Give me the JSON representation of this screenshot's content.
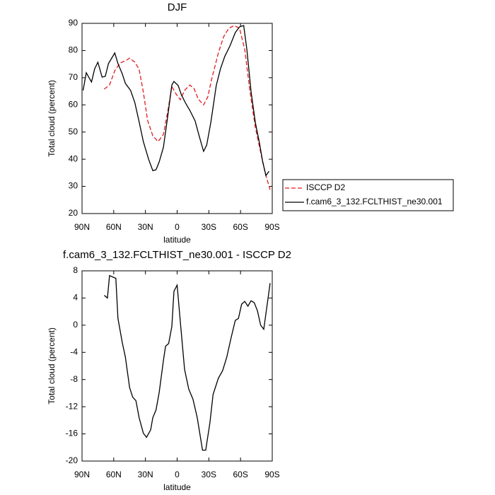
{
  "chart_data": [
    {
      "type": "line",
      "title": "DJF",
      "xlabel": "latitude",
      "ylabel": "Total cloud (percent)",
      "xlim": [
        90,
        -90
      ],
      "xticks": [
        {
          "value": 90,
          "label": "90N"
        },
        {
          "value": 60,
          "label": "60N"
        },
        {
          "value": 30,
          "label": "30N"
        },
        0,
        {
          "value": -30,
          "label": "30S"
        },
        {
          "value": -60,
          "label": "60S"
        },
        {
          "value": -90,
          "label": "90S"
        }
      ],
      "ylim": [
        20,
        90
      ],
      "yticks": [
        20,
        30,
        40,
        50,
        60,
        70,
        80,
        90
      ],
      "legend": "right",
      "series": [
        {
          "name": "ISCCP D2",
          "color": "#e41a1c",
          "linestyle": "dashed",
          "x": [
            69,
            64,
            59,
            54,
            49,
            45,
            40,
            36,
            32,
            28,
            23,
            18,
            13,
            9,
            5,
            1,
            -3,
            -7,
            -12,
            -16,
            -20,
            -25,
            -29,
            -33,
            -39,
            -44,
            -49,
            -54,
            -59,
            -64,
            -69,
            -74,
            -79,
            -84,
            -88
          ],
          "values": [
            65.8,
            67.3,
            72.6,
            75.4,
            76.2,
            77.2,
            75.7,
            73.1,
            64.7,
            54.3,
            48.6,
            46.5,
            49.1,
            57.4,
            66.8,
            64,
            61.9,
            65.3,
            67.3,
            66,
            62.1,
            60,
            62.9,
            70,
            79.1,
            85.1,
            88.2,
            89.2,
            88.2,
            80.4,
            64.7,
            51.7,
            42.6,
            34,
            28.8
          ]
        },
        {
          "name": "f.cam6_3_132.FCLTHIST_ne30.001",
          "color": "#000000",
          "linestyle": "solid",
          "x": [
            89,
            86,
            81,
            78,
            75,
            71,
            68,
            65,
            59,
            56,
            52,
            49,
            44,
            40,
            36,
            32,
            27,
            23,
            20,
            17,
            13,
            9,
            5,
            3,
            -1,
            -4,
            -8,
            -12,
            -17,
            -21,
            -25,
            -28,
            -32,
            -37,
            -41,
            -45,
            -50,
            -55,
            -59,
            -63,
            -66,
            -70,
            -74,
            -78,
            -81,
            -84,
            -87
          ],
          "values": [
            65.3,
            71.8,
            68.4,
            73.3,
            75.7,
            70.2,
            70.5,
            75.2,
            79.1,
            75.2,
            71.5,
            67.9,
            65.3,
            60.8,
            53.8,
            46.5,
            40,
            35.8,
            36.1,
            39,
            44.4,
            55.6,
            67.3,
            68.6,
            67.1,
            63.7,
            60.6,
            58,
            54.1,
            48.3,
            42.9,
            45.2,
            53.8,
            67.1,
            73.3,
            77.8,
            81.7,
            86.6,
            88.7,
            89.2,
            80.4,
            64.7,
            53.5,
            45.7,
            39,
            34,
            35.6
          ]
        }
      ]
    },
    {
      "type": "line",
      "title": "f.cam6_3_132.FCLTHIST_ne30.001 - ISCCP D2",
      "xlabel": "latitude",
      "ylabel": "Total cloud (percent)",
      "xlim": [
        90,
        -90
      ],
      "xticks": [
        {
          "value": 90,
          "label": "90N"
        },
        {
          "value": 60,
          "label": "60N"
        },
        {
          "value": 30,
          "label": "30N"
        },
        0,
        {
          "value": -30,
          "label": "30S"
        },
        {
          "value": -60,
          "label": "60S"
        },
        {
          "value": -90,
          "label": "90S"
        }
      ],
      "ylim": [
        -20,
        8
      ],
      "yticks": [
        -20,
        -16,
        -12,
        -8,
        -4,
        0,
        4,
        8
      ],
      "series": [
        {
          "color": "#000000",
          "linestyle": "solid",
          "x": [
            69,
            66,
            64,
            58,
            56,
            52,
            49,
            45,
            42,
            39,
            36,
            32,
            29,
            25,
            23,
            20,
            17,
            13,
            11,
            8,
            5,
            3,
            0,
            -3,
            -7,
            -11,
            -15,
            -19,
            -24,
            -27,
            -31,
            -34,
            -39,
            -43,
            -47,
            -51,
            -55,
            -58,
            -61,
            -64,
            -67,
            -70,
            -73,
            -76,
            -79,
            -82,
            -88
          ],
          "values": [
            4.4,
            4.0,
            7.3,
            6.9,
            1.0,
            -2.5,
            -4.7,
            -9.2,
            -10.6,
            -11.1,
            -13.6,
            -15.9,
            -16.5,
            -15.4,
            -13.6,
            -12.5,
            -9.9,
            -5.2,
            -3.1,
            -2.7,
            -0.2,
            5.0,
            5.9,
            0.5,
            -6.5,
            -9.4,
            -10.9,
            -13.6,
            -18.4,
            -18.4,
            -14.4,
            -10.2,
            -7.8,
            -6.7,
            -4.7,
            -1.9,
            0.7,
            1.0,
            3.1,
            3.5,
            2.8,
            3.6,
            3.3,
            2.1,
            0,
            -0.6,
            6.2
          ]
        }
      ]
    }
  ]
}
